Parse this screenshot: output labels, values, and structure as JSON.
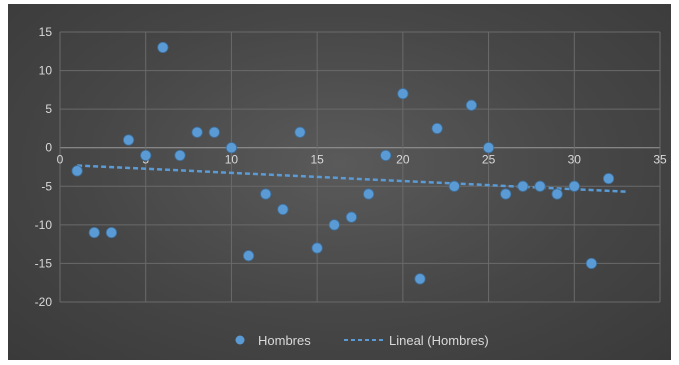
{
  "chart_data": {
    "type": "scatter",
    "title": "",
    "xlabel": "",
    "ylabel": "",
    "xlim": [
      0,
      35
    ],
    "ylim": [
      -20,
      15
    ],
    "x_ticks": [
      "0",
      "5",
      "10",
      "15",
      "20",
      "25",
      "30",
      "35"
    ],
    "y_ticks": [
      "15",
      "10",
      "5",
      "0",
      "-5",
      "-10",
      "-15",
      "-20"
    ],
    "grid": true,
    "legend_position": "bottom",
    "marker_color": "#5b9bd5",
    "series": [
      {
        "name": "Hombres",
        "points": [
          [
            1,
            -3
          ],
          [
            2,
            -11
          ],
          [
            3,
            -11
          ],
          [
            4,
            1
          ],
          [
            5,
            -1
          ],
          [
            6,
            13
          ],
          [
            7,
            -1
          ],
          [
            8,
            2
          ],
          [
            9,
            2
          ],
          [
            10,
            0
          ],
          [
            11,
            -14
          ],
          [
            12,
            -6
          ],
          [
            13,
            -8
          ],
          [
            14,
            2
          ],
          [
            15,
            -13
          ],
          [
            16,
            -10
          ],
          [
            17,
            -9
          ],
          [
            18,
            -6
          ],
          [
            19,
            -1
          ],
          [
            20,
            7
          ],
          [
            21,
            -17
          ],
          [
            22,
            2.5
          ],
          [
            23,
            -5
          ],
          [
            24,
            5.5
          ],
          [
            25,
            0
          ],
          [
            26,
            -6
          ],
          [
            27,
            -5
          ],
          [
            28,
            -5
          ],
          [
            29,
            -6
          ],
          [
            30,
            -5
          ],
          [
            31,
            -15
          ],
          [
            32,
            -4
          ]
        ]
      }
    ],
    "trendline": {
      "name": "Lineal (Hombres)",
      "style": "dashed",
      "color": "#5b9bd5",
      "start": [
        1,
        -2.3
      ],
      "end": [
        33,
        -5.7
      ]
    }
  }
}
